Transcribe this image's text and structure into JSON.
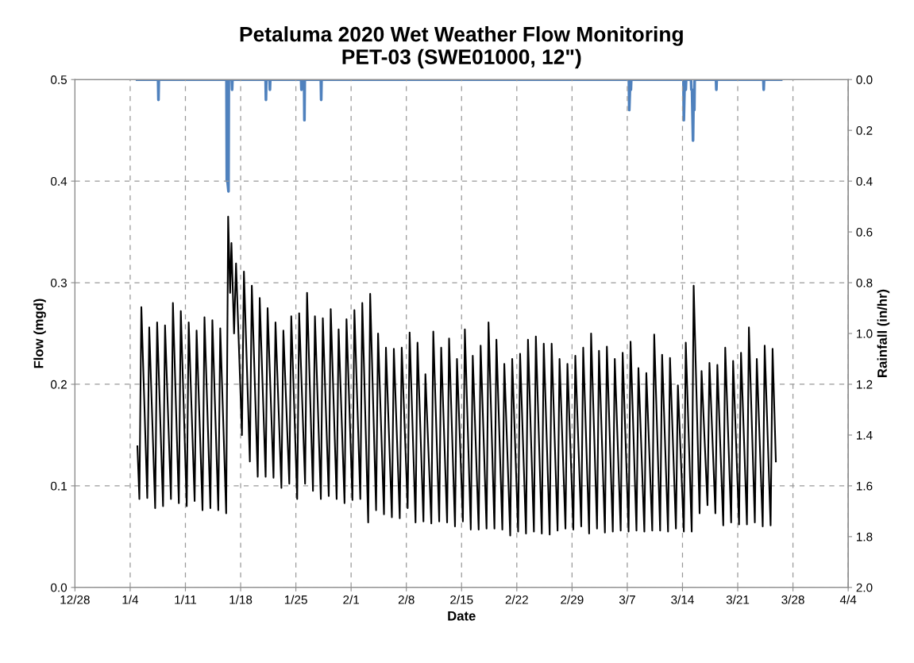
{
  "chart_data": {
    "type": "line",
    "title": "Petaluma 2020 Wet Weather Flow Monitoring\nPET-03 (SWE01000, 12\")",
    "xlabel": "Date",
    "ylabel": "Flow (mgd)",
    "y2label": "Rainfall (in/hr)",
    "xlim": [
      "2019-12-28",
      "2020-04-04"
    ],
    "xticks": [
      {
        "value": "2019-12-28",
        "label": "12/28"
      },
      {
        "value": "2020-01-04",
        "label": "1/4"
      },
      {
        "value": "2020-01-11",
        "label": "1/11"
      },
      {
        "value": "2020-01-18",
        "label": "1/18"
      },
      {
        "value": "2020-01-25",
        "label": "1/25"
      },
      {
        "value": "2020-02-01",
        "label": "2/1"
      },
      {
        "value": "2020-02-08",
        "label": "2/8"
      },
      {
        "value": "2020-02-15",
        "label": "2/15"
      },
      {
        "value": "2020-02-22",
        "label": "2/22"
      },
      {
        "value": "2020-02-29",
        "label": "2/29"
      },
      {
        "value": "2020-03-07",
        "label": "3/7"
      },
      {
        "value": "2020-03-14",
        "label": "3/14"
      },
      {
        "value": "2020-03-21",
        "label": "3/21"
      },
      {
        "value": "2020-03-28",
        "label": "3/28"
      },
      {
        "value": "2020-04-04",
        "label": "4/4"
      }
    ],
    "ylim": [
      0,
      0.5
    ],
    "yticks": [
      {
        "value": 0,
        "label": "0.0"
      },
      0.1,
      0.2,
      0.3,
      0.4,
      0.5
    ],
    "y2lim": [
      2.0,
      0
    ],
    "y2ticks": [
      {
        "value": 0,
        "label": "0.0"
      },
      0.2,
      0.4,
      0.6,
      0.8,
      {
        "value": 1,
        "label": "1.0"
      },
      1.2,
      1.4,
      1.6,
      1.8,
      {
        "value": 2,
        "label": "2.0"
      }
    ],
    "grid": true,
    "series": [
      {
        "color": "#000000",
        "x": [
          "2020-01-04T22:00",
          "2020-01-05T04:00",
          "2020-01-05T10:00",
          "2020-01-06T04:00",
          "2020-01-06T10:00",
          "2020-01-07T04:00",
          "2020-01-07T10:00",
          "2020-01-08T04:00",
          "2020-01-08T10:00",
          "2020-01-09T04:00",
          "2020-01-09T10:00",
          "2020-01-10T04:00",
          "2020-01-10T10:00",
          "2020-01-11T04:00",
          "2020-01-11T10:00",
          "2020-01-12T04:00",
          "2020-01-12T10:00",
          "2020-01-13T04:00",
          "2020-01-13T10:00",
          "2020-01-14T04:00",
          "2020-01-14T10:00",
          "2020-01-15T04:00",
          "2020-01-15T10:00",
          "2020-01-16T04:00",
          "2020-01-16T10:00",
          "2020-01-16T16:00",
          "2020-01-16T20:00",
          "2020-01-17T04:00",
          "2020-01-17T10:00",
          "2020-01-18T04:00",
          "2020-01-18T10:00",
          "2020-01-19T04:00",
          "2020-01-19T10:00",
          "2020-01-20T04:00",
          "2020-01-20T10:00",
          "2020-01-21T04:00",
          "2020-01-21T10:00",
          "2020-01-22T04:00",
          "2020-01-22T10:00",
          "2020-01-23T04:00",
          "2020-01-23T10:00",
          "2020-01-24T04:00",
          "2020-01-24T10:00",
          "2020-01-25T04:00",
          "2020-01-25T10:00",
          "2020-01-26T04:00",
          "2020-01-26T10:00",
          "2020-01-27T04:00",
          "2020-01-27T10:00",
          "2020-01-28T04:00",
          "2020-01-28T10:00",
          "2020-01-29T04:00",
          "2020-01-29T10:00",
          "2020-01-30T04:00",
          "2020-01-30T10:00",
          "2020-01-31T04:00",
          "2020-01-31T10:00",
          "2020-02-01T04:00",
          "2020-02-01T10:00",
          "2020-02-02T04:00",
          "2020-02-02T10:00",
          "2020-02-03T04:00",
          "2020-02-03T10:00",
          "2020-02-04T04:00",
          "2020-02-04T10:00",
          "2020-02-05T04:00",
          "2020-02-05T10:00",
          "2020-02-06T04:00",
          "2020-02-06T10:00",
          "2020-02-07T04:00",
          "2020-02-07T10:00",
          "2020-02-08T04:00",
          "2020-02-08T10:00",
          "2020-02-09T04:00",
          "2020-02-09T10:00",
          "2020-02-10T04:00",
          "2020-02-10T10:00",
          "2020-02-11T04:00",
          "2020-02-11T10:00",
          "2020-02-12T04:00",
          "2020-02-12T10:00",
          "2020-02-13T04:00",
          "2020-02-13T10:00",
          "2020-02-14T04:00",
          "2020-02-14T10:00",
          "2020-02-15T04:00",
          "2020-02-15T10:00",
          "2020-02-16T04:00",
          "2020-02-16T10:00",
          "2020-02-17T04:00",
          "2020-02-17T10:00",
          "2020-02-18T04:00",
          "2020-02-18T10:00",
          "2020-02-19T04:00",
          "2020-02-19T10:00",
          "2020-02-20T04:00",
          "2020-02-20T10:00",
          "2020-02-21T04:00",
          "2020-02-21T10:00",
          "2020-02-22T04:00",
          "2020-02-22T10:00",
          "2020-02-23T04:00",
          "2020-02-23T10:00",
          "2020-02-24T04:00",
          "2020-02-24T10:00",
          "2020-02-25T04:00",
          "2020-02-25T10:00",
          "2020-02-26T04:00",
          "2020-02-26T10:00",
          "2020-02-27T04:00",
          "2020-02-27T10:00",
          "2020-02-28T04:00",
          "2020-02-28T10:00",
          "2020-02-29T04:00",
          "2020-02-29T10:00",
          "2020-03-01T04:00",
          "2020-03-01T10:00",
          "2020-03-02T04:00",
          "2020-03-02T10:00",
          "2020-03-03T04:00",
          "2020-03-03T10:00",
          "2020-03-04T04:00",
          "2020-03-04T10:00",
          "2020-03-05T04:00",
          "2020-03-05T10:00",
          "2020-03-06T04:00",
          "2020-03-06T10:00",
          "2020-03-07T04:00",
          "2020-03-07T10:00",
          "2020-03-08T04:00",
          "2020-03-08T10:00",
          "2020-03-09T04:00",
          "2020-03-09T10:00",
          "2020-03-10T04:00",
          "2020-03-10T10:00",
          "2020-03-11T04:00",
          "2020-03-11T10:00",
          "2020-03-12T04:00",
          "2020-03-12T10:00",
          "2020-03-13T04:00",
          "2020-03-13T10:00",
          "2020-03-14T04:00",
          "2020-03-14T10:00",
          "2020-03-15T04:00",
          "2020-03-15T10:00",
          "2020-03-16T04:00",
          "2020-03-16T10:00",
          "2020-03-17T04:00",
          "2020-03-17T10:00",
          "2020-03-18T04:00",
          "2020-03-18T10:00",
          "2020-03-19T04:00",
          "2020-03-19T10:00",
          "2020-03-20T04:00",
          "2020-03-20T10:00",
          "2020-03-21T04:00",
          "2020-03-21T10:00",
          "2020-03-22T04:00",
          "2020-03-22T10:00",
          "2020-03-23T04:00",
          "2020-03-23T10:00",
          "2020-03-24T04:00",
          "2020-03-24T10:00",
          "2020-03-25T04:00",
          "2020-03-25T10:00",
          "2020-03-25T20:00"
        ],
        "values": [
          0.139,
          0.087,
          0.276,
          0.088,
          0.256,
          0.078,
          0.261,
          0.08,
          0.258,
          0.087,
          0.28,
          0.083,
          0.272,
          0.08,
          0.261,
          0.085,
          0.253,
          0.076,
          0.266,
          0.078,
          0.263,
          0.076,
          0.255,
          0.073,
          0.365,
          0.29,
          0.339,
          0.25,
          0.319,
          0.15,
          0.311,
          0.124,
          0.297,
          0.109,
          0.285,
          0.109,
          0.275,
          0.108,
          0.261,
          0.098,
          0.253,
          0.102,
          0.267,
          0.087,
          0.27,
          0.102,
          0.29,
          0.095,
          0.267,
          0.087,
          0.265,
          0.09,
          0.274,
          0.087,
          0.254,
          0.083,
          0.264,
          0.086,
          0.273,
          0.087,
          0.28,
          0.064,
          0.289,
          0.076,
          0.25,
          0.072,
          0.236,
          0.069,
          0.235,
          0.068,
          0.236,
          0.078,
          0.251,
          0.064,
          0.241,
          0.065,
          0.21,
          0.063,
          0.252,
          0.065,
          0.236,
          0.064,
          0.245,
          0.06,
          0.225,
          0.065,
          0.254,
          0.057,
          0.228,
          0.057,
          0.238,
          0.058,
          0.261,
          0.058,
          0.244,
          0.057,
          0.22,
          0.051,
          0.225,
          0.055,
          0.23,
          0.053,
          0.244,
          0.055,
          0.247,
          0.053,
          0.24,
          0.052,
          0.24,
          0.056,
          0.225,
          0.058,
          0.22,
          0.057,
          0.228,
          0.06,
          0.236,
          0.053,
          0.25,
          0.058,
          0.233,
          0.054,
          0.237,
          0.055,
          0.225,
          0.056,
          0.231,
          0.055,
          0.242,
          0.056,
          0.216,
          0.055,
          0.211,
          0.056,
          0.249,
          0.056,
          0.229,
          0.055,
          0.226,
          0.058,
          0.199,
          0.055,
          0.241,
          0.055,
          0.297,
          0.073,
          0.213,
          0.081,
          0.221,
          0.073,
          0.219,
          0.061,
          0.236,
          0.064,
          0.223,
          0.062,
          0.231,
          0.062,
          0.256,
          0.064,
          0.225,
          0.06,
          0.238,
          0.061,
          0.235,
          0.124
        ]
      },
      {
        "color": "#4f81bd",
        "axis": "y2",
        "x": [
          "2020-01-04T21:00",
          "2020-01-07T13:00",
          "2020-01-07T14:00",
          "2020-01-07T15:00",
          "2020-01-16T05:00",
          "2020-01-16T06:00",
          "2020-01-16T08:00",
          "2020-01-16T11:00",
          "2020-01-16T12:00",
          "2020-01-16T21:00",
          "2020-01-16T22:00",
          "2020-01-16T23:00",
          "2020-01-21T04:00",
          "2020-01-21T05:00",
          "2020-01-21T06:00",
          "2020-01-21T16:00",
          "2020-01-21T17:00",
          "2020-01-21T18:00",
          "2020-01-25T16:00",
          "2020-01-25T17:00",
          "2020-01-25T18:00",
          "2020-01-26T01:00",
          "2020-01-26T02:00",
          "2020-01-26T03:00",
          "2020-01-28T04:00",
          "2020-01-28T05:00",
          "2020-01-28T06:00",
          "2020-03-07T05:00",
          "2020-03-07T06:00",
          "2020-03-07T08:00",
          "2020-03-07T11:00",
          "2020-03-07T12:00",
          "2020-03-14T03:00",
          "2020-03-14T04:00",
          "2020-03-14T06:00",
          "2020-03-14T10:00",
          "2020-03-14T11:00",
          "2020-03-15T02:00",
          "2020-03-15T03:00",
          "2020-03-15T05:00",
          "2020-03-15T08:00",
          "2020-03-15T10:00",
          "2020-03-15T12:00",
          "2020-03-15T13:00",
          "2020-03-18T06:00",
          "2020-03-18T07:00",
          "2020-03-18T08:00",
          "2020-03-24T06:00",
          "2020-03-24T07:00",
          "2020-03-24T08:00",
          "2020-03-26T12:00"
        ],
        "values": [
          0,
          0,
          0.08,
          0,
          0,
          0.4,
          0.4,
          0.44,
          0,
          0,
          0.04,
          0,
          0,
          0.08,
          0,
          0,
          0.04,
          0,
          0,
          0.04,
          0,
          0,
          0.16,
          0,
          0,
          0.08,
          0,
          0,
          0.12,
          0.04,
          0.04,
          0,
          0,
          0.16,
          0.04,
          0.04,
          0,
          0,
          0.04,
          0.04,
          0.24,
          0.04,
          0.12,
          0,
          0,
          0.04,
          0,
          0,
          0.04,
          0,
          0
        ]
      }
    ]
  }
}
